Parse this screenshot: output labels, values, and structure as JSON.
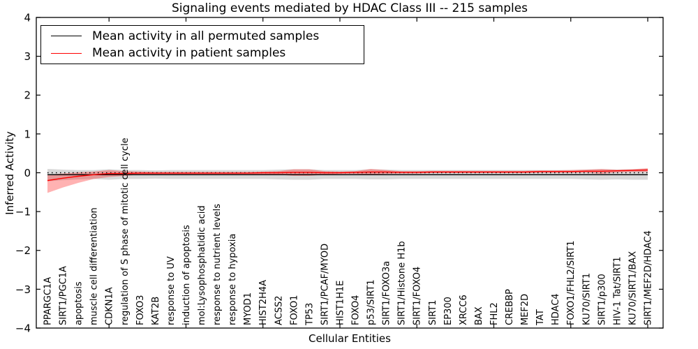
{
  "chart_data": {
    "type": "line",
    "title": "Signaling events mediated by HDAC Class III -- 215 samples",
    "xlabel": "Cellular Entities",
    "ylabel": "Inferred Activity",
    "ylim": [
      -4,
      4
    ],
    "yticks": [
      4,
      3,
      2,
      1,
      0,
      -1,
      -2,
      -3,
      -4
    ],
    "ytick_labels": [
      "4",
      "3",
      "2",
      "1",
      "0",
      "−1",
      "−2",
      "−3",
      "−4"
    ],
    "xtick_positions": [
      5,
      10,
      15,
      20,
      25,
      30,
      35,
      40
    ],
    "grid": false,
    "legend_position": "upper left",
    "zero_line": {
      "style": "dotted",
      "color": "#000000"
    },
    "categories": [
      "PPARGC1A",
      "SIRT1/PGC1A",
      "apoptosis",
      "muscle cell differentiation",
      "CDKN1A",
      "regulation of S phase of mitotic cell cycle",
      "FOXO3",
      "KAT2B",
      "response to UV",
      "induction of apoptosis",
      "mol:Lysophosphatidic acid",
      "response to nutrient levels",
      "response to hypoxia",
      "MYOD1",
      "HIST2H4A",
      "ACSS2",
      "FOXO1",
      "TP53",
      "SIRT1/PCAF/MYOD",
      "HIST1H1E",
      "FOXO4",
      "p53/SIRT1",
      "SIRT1/FOXO3a",
      "SIRT1/Histone H1b",
      "SIRT1/FOXO4",
      "SIRT1",
      "EP300",
      "XRCC6",
      "BAX",
      "FHL2",
      "CREBBP",
      "MEF2D",
      "TAT",
      "HDAC4",
      "FOXO1/FHL2/SIRT1",
      "KU70/SIRT1",
      "SIRT1/p300",
      "HIV-1 Tat/SIRT1",
      "KU70/SIRT1/BAX",
      "SIRT1/MEF2D/HDAC4"
    ],
    "series": [
      {
        "name": "Mean activity in all permuted samples",
        "color": "#000000",
        "band_color": "rgba(100,100,100,0.25)",
        "values": [
          -0.05,
          -0.05,
          -0.05,
          -0.05,
          -0.05,
          -0.05,
          -0.05,
          -0.05,
          -0.05,
          -0.05,
          -0.05,
          -0.05,
          -0.05,
          -0.05,
          -0.05,
          -0.05,
          -0.05,
          -0.05,
          -0.05,
          -0.05,
          -0.05,
          -0.05,
          -0.05,
          -0.05,
          -0.05,
          -0.05,
          -0.05,
          -0.05,
          -0.05,
          -0.05,
          -0.05,
          -0.05,
          -0.05,
          -0.05,
          -0.05,
          -0.05,
          -0.05,
          -0.05,
          -0.05,
          -0.05
        ],
        "band_upper": [
          0.1,
          0.08,
          0.07,
          0.07,
          0.09,
          0.07,
          0.07,
          0.06,
          0.07,
          0.07,
          0.07,
          0.07,
          0.07,
          0.07,
          0.07,
          0.08,
          0.09,
          0.09,
          0.07,
          0.07,
          0.07,
          0.09,
          0.08,
          0.07,
          0.07,
          0.07,
          0.07,
          0.07,
          0.07,
          0.07,
          0.07,
          0.07,
          0.07,
          0.07,
          0.07,
          0.08,
          0.09,
          0.08,
          0.09,
          0.1
        ],
        "band_lower": [
          -0.22,
          -0.19,
          -0.17,
          -0.16,
          -0.18,
          -0.16,
          -0.16,
          -0.15,
          -0.16,
          -0.16,
          -0.16,
          -0.16,
          -0.16,
          -0.16,
          -0.16,
          -0.17,
          -0.18,
          -0.18,
          -0.16,
          -0.16,
          -0.16,
          -0.17,
          -0.17,
          -0.16,
          -0.16,
          -0.16,
          -0.16,
          -0.16,
          -0.16,
          -0.16,
          -0.16,
          -0.16,
          -0.16,
          -0.16,
          -0.16,
          -0.17,
          -0.18,
          -0.17,
          -0.18,
          -0.18
        ]
      },
      {
        "name": "Mean activity in patient samples",
        "color": "#ff0000",
        "band_color": "rgba(255,0,0,0.30)",
        "values": [
          -0.2,
          -0.14,
          -0.09,
          -0.05,
          -0.02,
          -0.02,
          -0.01,
          -0.01,
          -0.01,
          -0.01,
          -0.01,
          -0.01,
          -0.01,
          -0.01,
          0.0,
          0.0,
          0.01,
          0.01,
          0.0,
          0.0,
          0.01,
          0.02,
          0.02,
          0.01,
          0.01,
          0.02,
          0.02,
          0.02,
          0.02,
          0.02,
          0.02,
          0.02,
          0.03,
          0.03,
          0.03,
          0.04,
          0.04,
          0.05,
          0.06,
          0.07
        ],
        "band_upper": [
          -0.05,
          -0.02,
          0.01,
          0.03,
          0.07,
          0.04,
          0.03,
          0.02,
          0.02,
          0.02,
          0.02,
          0.02,
          0.02,
          0.02,
          0.03,
          0.04,
          0.09,
          0.09,
          0.04,
          0.03,
          0.04,
          0.1,
          0.07,
          0.04,
          0.04,
          0.05,
          0.05,
          0.05,
          0.05,
          0.05,
          0.05,
          0.05,
          0.06,
          0.06,
          0.07,
          0.08,
          0.1,
          0.08,
          0.09,
          0.12
        ],
        "band_lower": [
          -0.52,
          -0.38,
          -0.26,
          -0.16,
          -0.11,
          -0.08,
          -0.05,
          -0.04,
          -0.04,
          -0.04,
          -0.04,
          -0.04,
          -0.04,
          -0.04,
          -0.04,
          -0.05,
          -0.08,
          -0.08,
          -0.05,
          -0.03,
          -0.03,
          -0.05,
          -0.03,
          -0.02,
          -0.02,
          -0.01,
          -0.01,
          -0.01,
          -0.01,
          -0.01,
          -0.01,
          -0.01,
          0.0,
          0.0,
          0.0,
          0.0,
          -0.03,
          0.01,
          0.02,
          0.02
        ]
      }
    ]
  }
}
